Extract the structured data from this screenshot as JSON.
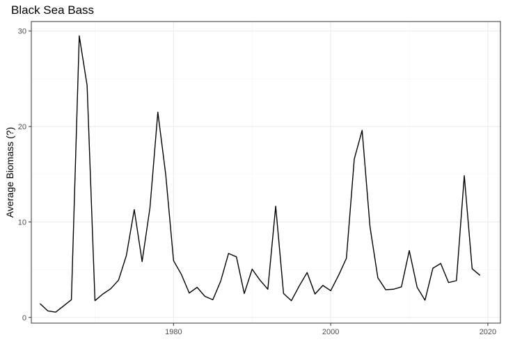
{
  "chart_data": {
    "type": "line",
    "title": "Black Sea Bass",
    "xlabel": "",
    "ylabel": "Average Biomass (?)",
    "xlim": [
      1961.9,
      2021.6
    ],
    "ylim": [
      -0.6,
      31.0
    ],
    "x_ticks": [
      1980,
      2000,
      2020
    ],
    "y_ticks": [
      0,
      10,
      20,
      30
    ],
    "x_minor_ticks": [
      1970,
      1990,
      2010
    ],
    "y_minor_ticks": [
      5,
      15,
      25
    ],
    "grid": true,
    "legend": "none",
    "colors": {
      "background": "#ffffff",
      "panel_border": "#333333",
      "grid_major": "#ebebeb",
      "grid_minor": "#f5f5f5",
      "line": "#000000",
      "tick_label": "#4d4d4d"
    },
    "series": [
      {
        "x": [
          1963,
          1964,
          1965,
          1966,
          1967,
          1968,
          1969,
          1970,
          1971,
          1972,
          1973,
          1974,
          1975,
          1976,
          1977,
          1978,
          1979,
          1980,
          1981,
          1982,
          1983,
          1984,
          1985,
          1986,
          1987,
          1988,
          1989,
          1990,
          1991,
          1992,
          1993,
          1994,
          1995,
          1996,
          1997,
          1998,
          1999,
          2000,
          2001,
          2002,
          2003,
          2004,
          2005,
          2006,
          2007,
          2008,
          2009,
          2010,
          2011,
          2012,
          2013,
          2014,
          2015,
          2016,
          2017,
          2018,
          2019
        ],
        "y": [
          1.45,
          0.68,
          0.55,
          1.2,
          1.85,
          29.5,
          24.3,
          1.75,
          2.45,
          3.0,
          3.9,
          6.5,
          11.3,
          5.85,
          11.5,
          21.5,
          15.0,
          5.95,
          4.5,
          2.55,
          3.15,
          2.2,
          1.85,
          3.8,
          6.7,
          6.35,
          2.5,
          5.05,
          3.9,
          2.95,
          11.65,
          2.5,
          1.75,
          3.3,
          4.7,
          2.45,
          3.35,
          2.8,
          4.4,
          6.2,
          16.6,
          19.6,
          9.5,
          4.15,
          2.9,
          2.95,
          3.2,
          7.0,
          3.15,
          1.8,
          5.15,
          5.65,
          3.65,
          3.85,
          14.85,
          5.1,
          4.4
        ]
      }
    ]
  }
}
